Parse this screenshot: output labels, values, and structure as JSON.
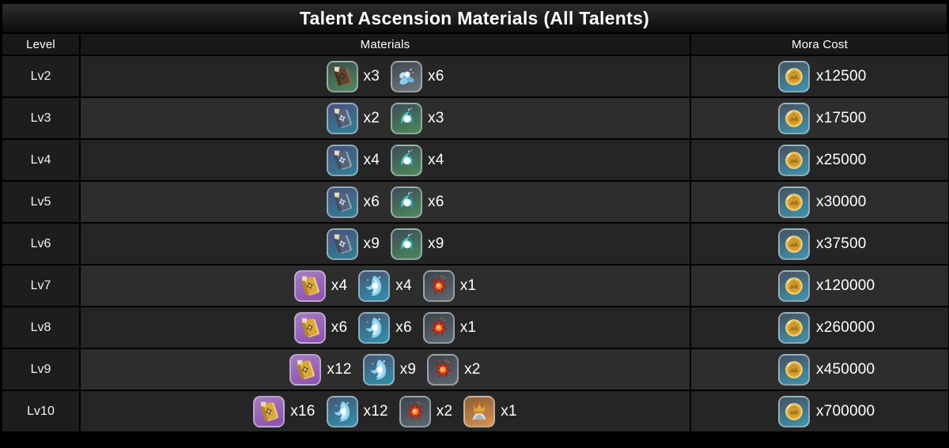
{
  "title": "Talent Ascension Materials (All Talents)",
  "table": {
    "headers": {
      "level": "Level",
      "materials": "Materials",
      "mora": "Mora Cost"
    },
    "rows": [
      {
        "level": "Lv2",
        "materials": [
          {
            "type": "teachings-book",
            "qty": "x3"
          },
          {
            "type": "common-drop",
            "qty": "x6"
          }
        ],
        "mora": {
          "type": "mora-coin",
          "qty": "x12500"
        }
      },
      {
        "level": "Lv3",
        "materials": [
          {
            "type": "guide-book",
            "qty": "x2"
          },
          {
            "type": "uncommon-drop",
            "qty": "x3"
          }
        ],
        "mora": {
          "type": "mora-coin",
          "qty": "x17500"
        }
      },
      {
        "level": "Lv4",
        "materials": [
          {
            "type": "guide-book",
            "qty": "x4"
          },
          {
            "type": "uncommon-drop",
            "qty": "x4"
          }
        ],
        "mora": {
          "type": "mora-coin",
          "qty": "x25000"
        }
      },
      {
        "level": "Lv5",
        "materials": [
          {
            "type": "guide-book",
            "qty": "x6"
          },
          {
            "type": "uncommon-drop",
            "qty": "x6"
          }
        ],
        "mora": {
          "type": "mora-coin",
          "qty": "x30000"
        }
      },
      {
        "level": "Lv6",
        "materials": [
          {
            "type": "guide-book",
            "qty": "x9"
          },
          {
            "type": "uncommon-drop",
            "qty": "x9"
          }
        ],
        "mora": {
          "type": "mora-coin",
          "qty": "x37500"
        }
      },
      {
        "level": "Lv7",
        "materials": [
          {
            "type": "philosophies-book",
            "qty": "x4"
          },
          {
            "type": "rare-drop",
            "qty": "x4"
          },
          {
            "type": "boss-material",
            "qty": "x1"
          }
        ],
        "mora": {
          "type": "mora-coin",
          "qty": "x120000"
        }
      },
      {
        "level": "Lv8",
        "materials": [
          {
            "type": "philosophies-book",
            "qty": "x6"
          },
          {
            "type": "rare-drop",
            "qty": "x6"
          },
          {
            "type": "boss-material",
            "qty": "x1"
          }
        ],
        "mora": {
          "type": "mora-coin",
          "qty": "x260000"
        }
      },
      {
        "level": "Lv9",
        "materials": [
          {
            "type": "philosophies-book",
            "qty": "x12"
          },
          {
            "type": "rare-drop",
            "qty": "x9"
          },
          {
            "type": "boss-material",
            "qty": "x2"
          }
        ],
        "mora": {
          "type": "mora-coin",
          "qty": "x450000"
        }
      },
      {
        "level": "Lv10",
        "materials": [
          {
            "type": "philosophies-book",
            "qty": "x16"
          },
          {
            "type": "rare-drop",
            "qty": "x12"
          },
          {
            "type": "boss-material",
            "qty": "x2"
          },
          {
            "type": "crown-of-insight",
            "qty": "x1"
          }
        ],
        "mora": {
          "type": "mora-coin",
          "qty": "x700000"
        }
      }
    ]
  },
  "material_types": {
    "teachings-book": {
      "icon": "teachings-book-icon",
      "bg_top": "#3b4c4c",
      "bg_bottom": "#4f8a5d"
    },
    "common-drop": {
      "icon": "common-material-icon",
      "bg_top": "#42474f",
      "bg_bottom": "#70767e"
    },
    "guide-book": {
      "icon": "guide-book-icon",
      "bg_top": "#4c4f7c",
      "bg_bottom": "#2e8295"
    },
    "uncommon-drop": {
      "icon": "uncommon-material-icon",
      "bg_top": "#3e4a5a",
      "bg_bottom": "#4c8a5a"
    },
    "philosophies-book": {
      "icon": "philosophies-book-icon",
      "bg_top": "#a57cc2",
      "bg_bottom": "#8d4fae"
    },
    "rare-drop": {
      "icon": "rare-material-icon",
      "bg_top": "#475672",
      "bg_bottom": "#3090ae"
    },
    "boss-material": {
      "icon": "boss-material-icon",
      "bg_top": "#3d434c",
      "bg_bottom": "#5f676f"
    },
    "crown-of-insight": {
      "icon": "crown-icon",
      "bg_top": "#8e5c36",
      "bg_bottom": "#d8934f"
    },
    "mora-coin": {
      "icon": "mora-coin-icon",
      "bg_top": "#47505f",
      "bg_bottom": "#3f95ae"
    }
  },
  "colors": {
    "frame_bg": "#000000",
    "title_bar_top": "#2e2e2e",
    "title_bar_bottom": "#0c0c0c",
    "header_cell_bg": "#181818",
    "level_cell_bg": "#1d1d1d",
    "row_bg_even": "#252525",
    "row_bg_odd": "#2d2d2d",
    "text": "#ffffff"
  }
}
